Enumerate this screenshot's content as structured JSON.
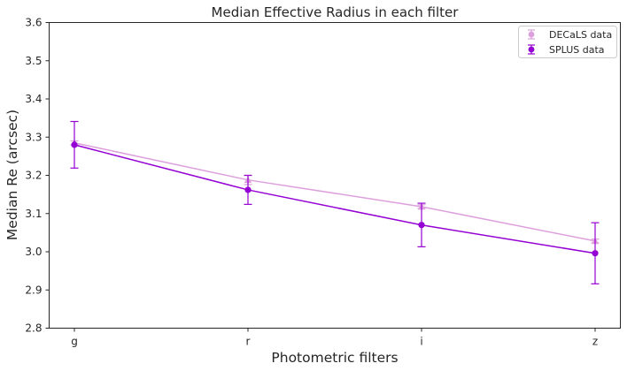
{
  "chart_data": {
    "type": "line",
    "title": "Median Effective Radius in each filter",
    "xlabel": "Photometric filters",
    "ylabel": "Median Re (arcsec)",
    "categories": [
      "g",
      "r",
      "i",
      "z"
    ],
    "ylim": [
      2.8,
      3.6
    ],
    "yticks": [
      "2.8",
      "2.9",
      "3.0",
      "3.1",
      "3.2",
      "3.3",
      "3.4",
      "3.5",
      "3.6"
    ],
    "grid": false,
    "legend_position": "top-right",
    "series": [
      {
        "name": "DECaLS data",
        "color": "#dda0dd",
        "marker": "triangle",
        "values": [
          3.285,
          3.188,
          3.118,
          3.028
        ],
        "errors": [
          0.005,
          0.012,
          0.005,
          0.005
        ]
      },
      {
        "name": "SPLUS data",
        "color": "#9400d3",
        "marker": "circle",
        "values": [
          3.28,
          3.162,
          3.07,
          2.996
        ],
        "errors": [
          0.061,
          0.038,
          0.057,
          0.08
        ]
      }
    ]
  }
}
